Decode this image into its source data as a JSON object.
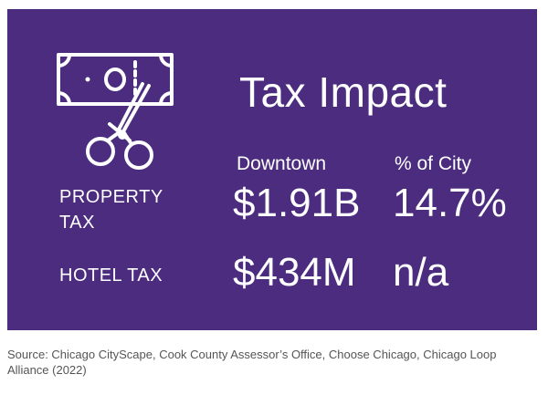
{
  "card": {
    "title": "Tax Impact",
    "icon": "bill-scissors-icon",
    "columns": [
      "Downtown",
      "% of City"
    ],
    "rows": [
      {
        "label": "PROPERTY TAX",
        "downtown": "$1.91B",
        "pct_city": "14.7%"
      },
      {
        "label": "HOTEL TAX",
        "downtown": "$434M",
        "pct_city": "n/a"
      }
    ]
  },
  "source": "Source: Chicago CityScape, Cook County Assessor’s Office, Choose Chicago, Chicago Loop Alliance (2022)",
  "colors": {
    "card_background": "#4b2c7f",
    "text": "#ffffff",
    "source_text": "#555555"
  }
}
